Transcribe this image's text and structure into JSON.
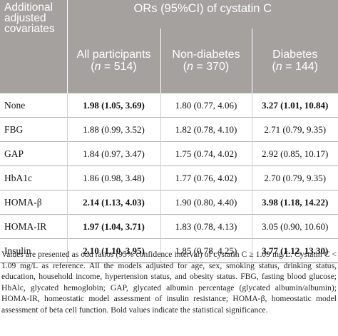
{
  "header": {
    "covariates_label": "Additional adjusted covariates",
    "ors_label": "ORs (95%CI) of cystatin C",
    "columns": [
      {
        "name": "All participants",
        "n_prefix": "(",
        "n_var": "n",
        "n_suffix": " = 514)"
      },
      {
        "name": "Non-diabetes",
        "n_prefix": "(",
        "n_var": "n",
        "n_suffix": " = 370)"
      },
      {
        "name": "Diabetes",
        "n_prefix": "(",
        "n_var": "n",
        "n_suffix": " = 144)"
      }
    ]
  },
  "rows": [
    {
      "label": "None",
      "all": "1.98 (1.05, 3.69)",
      "non_diabetes": "1.80 (0.77, 4.06)",
      "diabetes": "3.27 (1.01, 10.84)"
    },
    {
      "label": "FBG",
      "all": "1.88 (0.99, 3.52)",
      "non_diabetes": "1.82 (0.78, 4.10)",
      "diabetes": "2.71 (0.79, 9.35)"
    },
    {
      "label": "GAP",
      "all": "1.84 (0.97, 3.47)",
      "non_diabetes": "1.75 (0.74, 4.02)",
      "diabetes": "2.92 (0.85, 10.17)"
    },
    {
      "label": "HbA1c",
      "all": "1.86 (0.98, 3.48)",
      "non_diabetes": "1.77 (0.76, 4.02)",
      "diabetes": "2.70 (0.79, 9.35)"
    },
    {
      "label": "HOMA-β",
      "all": "2.14 (1.13, 4.03)",
      "non_diabetes": "1.90 (0.80, 4.40)",
      "diabetes": "3.98 (1.18, 14.22)"
    },
    {
      "label": "HOMA-IR",
      "all": "1.97 (1.04, 3.71)",
      "non_diabetes": "1.83 (0.78, 4.13)",
      "diabetes": "3.05 (0.90, 10.60)"
    },
    {
      "label": "Insulin",
      "all": "2.10 (1.10, 3.95)",
      "non_diabetes": "1.85 (0.78, 4.25)",
      "diabetes": "3.77 (1.12, 13.30)"
    }
  ],
  "footnote": "Values are presented as odd ratios (95% confidence interval) of cystatin C ≥ 1.09 mg/L. Cystatin C < 1.09 mg/L as reference. All the models adjusted for age, sex, smoking status, drinking status, education, household income, hypertension status, and obesity status. FBG, fasting blood glucose; HbAlc, glycated hemoglobin; GAP, glycated albumin percentage (glycated albumin/albumin); HOMA-IR, homeostatic model assessment of insulin resistance; HOMA-β, homeostatic model assessment of beta cell function. Bold values indicate the statistical significance."
}
